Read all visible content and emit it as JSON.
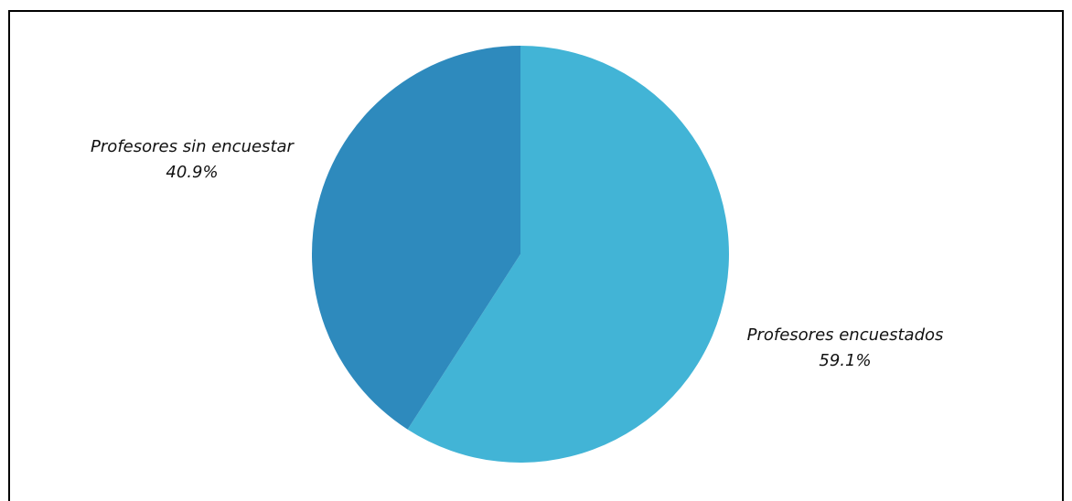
{
  "chart_data": {
    "type": "pie",
    "title": "",
    "slices": [
      {
        "label": "Profesores encuestados",
        "value": 59.1,
        "value_label": "59.1%",
        "color": "#42b4d6"
      },
      {
        "label": "Profesores sin encuestar",
        "value": 40.9,
        "value_label": "40.9%",
        "color": "#2e8abd"
      }
    ],
    "start": "12 o'clock",
    "direction": "clockwise",
    "legend": "none",
    "labels": "outside"
  }
}
